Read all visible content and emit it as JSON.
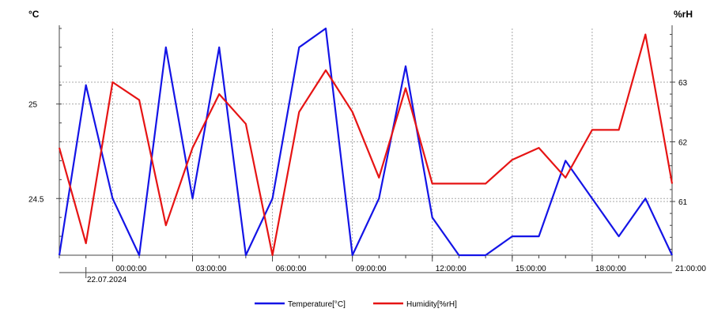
{
  "chart_data": {
    "type": "line",
    "y_left_unit": "°C",
    "y_right_unit": "%rH",
    "x_start_label": "22.07.2024",
    "x_tick_labels": [
      "00:00:00",
      "03:00:00",
      "06:00:00",
      "09:00:00",
      "12:00:00",
      "15:00:00",
      "18:00:00",
      "21:00:00"
    ],
    "y_left_ticks": [
      "25",
      "24.5"
    ],
    "y_right_ticks": [
      "63",
      "62",
      "61"
    ],
    "y_left_range": [
      24.2,
      25.4
    ],
    "y_right_range": [
      60.1,
      63.9
    ],
    "grid": true,
    "legend_position": "bottom-center",
    "x_hours_start": -2,
    "series": [
      {
        "name": "Temperature[°C]",
        "axis": "left",
        "color": "#1414e6",
        "values": [
          24.2,
          25.1,
          24.5,
          24.2,
          25.3,
          24.5,
          25.3,
          24.2,
          24.5,
          25.3,
          25.4,
          24.2,
          24.5,
          25.2,
          24.4,
          24.2,
          24.2,
          24.3,
          24.3,
          24.7,
          24.5,
          24.3,
          24.5,
          24.2
        ]
      },
      {
        "name": "Humidity[%rH]",
        "axis": "right",
        "color": "#e61414",
        "values": [
          61.9,
          60.3,
          63.0,
          62.7,
          60.6,
          61.9,
          62.8,
          62.3,
          60.1,
          62.5,
          63.2,
          62.5,
          61.4,
          62.9,
          61.3,
          61.3,
          61.3,
          61.7,
          61.9,
          61.4,
          62.2,
          62.2,
          63.8,
          61.3
        ]
      }
    ]
  }
}
